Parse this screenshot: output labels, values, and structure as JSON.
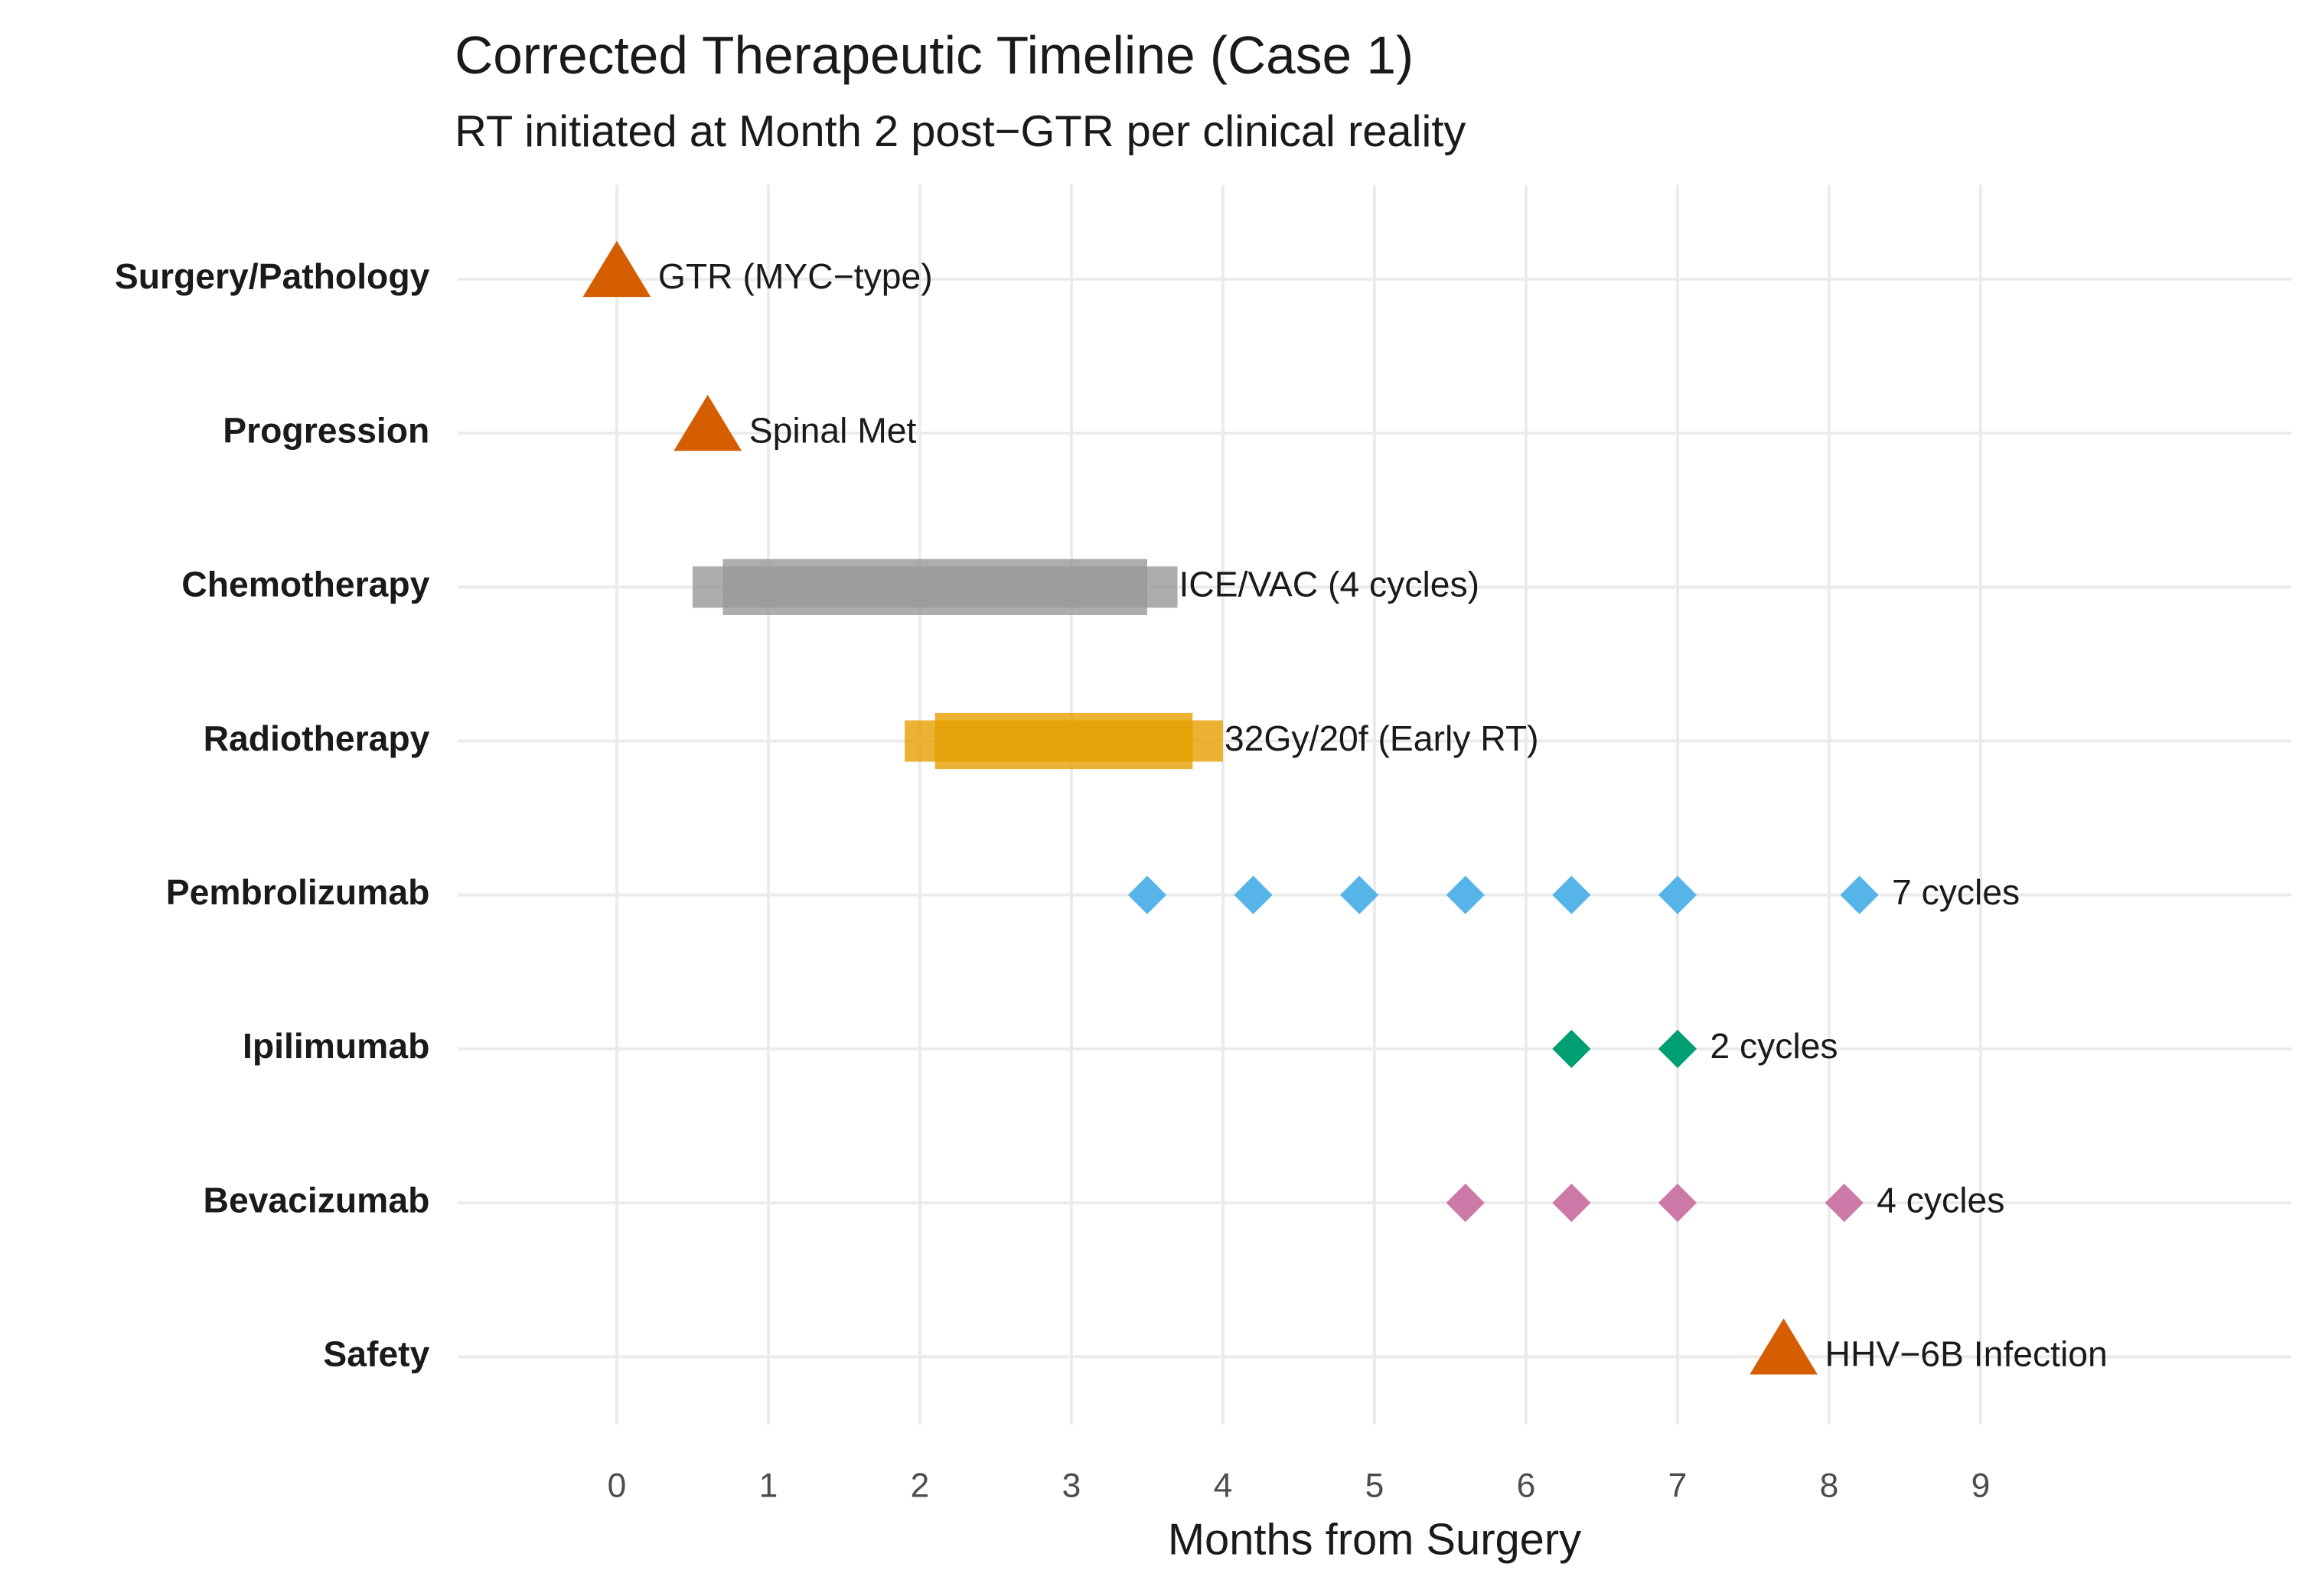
{
  "chart_data": {
    "type": "timeline",
    "title": "Corrected Therapeutic Timeline (Case 1)",
    "subtitle": "RT initiated at Month 2 post−GTR per clinical reality",
    "x_label": "Months from Surgery",
    "xlim": [
      -1.05,
      11.05
    ],
    "xticks": [
      0,
      1,
      2,
      3,
      4,
      5,
      6,
      7,
      8,
      9
    ],
    "grid": true,
    "series": [
      {
        "name": "Surgery/Pathology",
        "marker": "triangle",
        "color": "#d55e00",
        "x": [
          0
        ],
        "label": "GTR (MYC−type)"
      },
      {
        "name": "Progression",
        "marker": "triangle",
        "color": "#d55e00",
        "x": [
          0.6
        ],
        "label": "Spinal Met"
      },
      {
        "name": "Chemotherapy",
        "marker": "span",
        "color": "#999999",
        "spans": [
          [
            0.5,
            3.7
          ],
          [
            0.7,
            3.5
          ]
        ],
        "label": "ICE/VAC (4 cycles)"
      },
      {
        "name": "Radiotherapy",
        "marker": "span",
        "color": "#e69f00",
        "spans": [
          [
            1.9,
            4.0
          ],
          [
            2.1,
            3.8
          ]
        ],
        "label": "32Gy/20f (Early RT)"
      },
      {
        "name": "Pembrolizumab",
        "marker": "diamond",
        "color": "#56b4e9",
        "x": [
          3.5,
          4.2,
          4.9,
          5.6,
          6.3,
          7.0,
          8.2
        ],
        "label": "7 cycles"
      },
      {
        "name": "Ipilimumab",
        "marker": "diamond",
        "color": "#009e73",
        "x": [
          6.3,
          7.0
        ],
        "label": "2 cycles"
      },
      {
        "name": "Bevacizumab",
        "marker": "diamond",
        "color": "#cc79a7",
        "x": [
          5.6,
          6.3,
          7.0,
          8.1
        ],
        "label": "4 cycles"
      },
      {
        "name": "Safety",
        "marker": "triangle",
        "color": "#d55e00",
        "x": [
          7.7
        ],
        "label": "HHV−6B Infection"
      }
    ]
  }
}
